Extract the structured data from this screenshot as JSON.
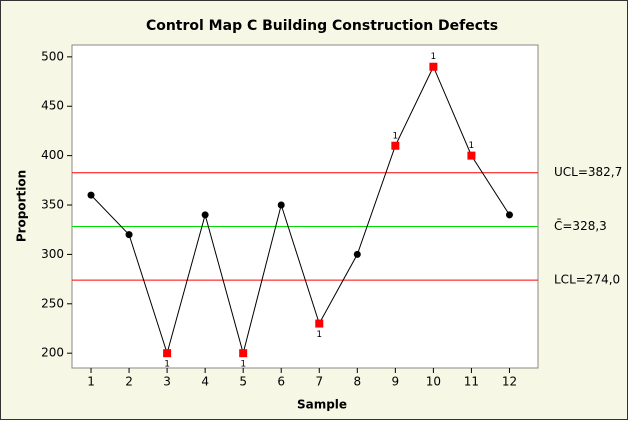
{
  "chart_data": {
    "type": "line",
    "title": "Control Map C Building Construction Defects",
    "xlabel": "Sample",
    "ylabel": "Proportion",
    "x": [
      1,
      2,
      3,
      4,
      5,
      6,
      7,
      8,
      9,
      10,
      11,
      12
    ],
    "series": [
      {
        "name": "C",
        "color": "#000000",
        "values": [
          360,
          320,
          200,
          340,
          200,
          350,
          230,
          300,
          410,
          490,
          400,
          340
        ],
        "point_colors": [
          "#000000",
          "#000000",
          "#ff0000",
          "#000000",
          "#ff0000",
          "#000000",
          "#ff0000",
          "#000000",
          "#ff0000",
          "#ff0000",
          "#ff0000",
          "#000000"
        ],
        "point_markers": [
          "circle",
          "circle",
          "square",
          "circle",
          "square",
          "circle",
          "square",
          "circle",
          "square",
          "square",
          "square",
          "circle"
        ],
        "flag_labels": [
          null,
          null,
          "1",
          null,
          "1",
          null,
          "1",
          null,
          "1",
          "1",
          "1",
          null
        ]
      }
    ],
    "control_lines": [
      {
        "value": 382.7,
        "label": "UCL=382,7",
        "color": "#ff0000"
      },
      {
        "value": 328.3,
        "label": "C̄=328,3",
        "color": "#00dd00"
      },
      {
        "value": 274.0,
        "label": "LCL=274,0",
        "color": "#ff0000"
      }
    ],
    "xlim": [
      0.5,
      12.75
    ],
    "ylim": [
      185,
      512
    ],
    "xticks": [
      1,
      2,
      3,
      4,
      5,
      6,
      7,
      8,
      9,
      10,
      11,
      12
    ],
    "yticks": [
      200,
      250,
      300,
      350,
      400,
      450,
      500
    ]
  }
}
